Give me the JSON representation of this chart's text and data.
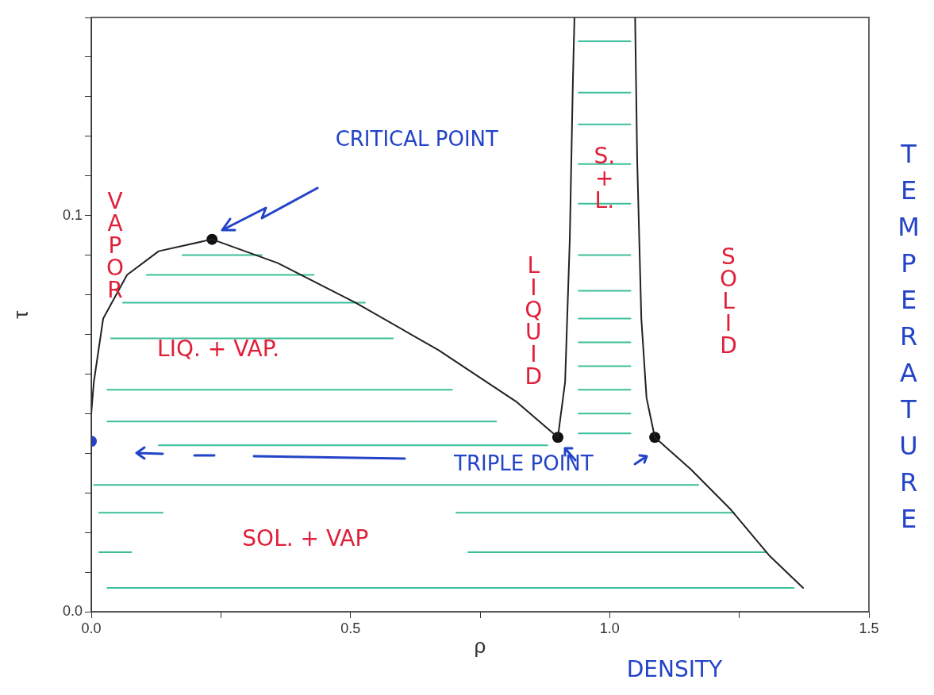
{
  "chart_data": {
    "type": "line",
    "xlabel": "ρ",
    "ylabel": "τ",
    "y2label": "TEMPERATURE",
    "xlim": [
      0,
      1.5
    ],
    "ylim": [
      0,
      0.15
    ],
    "xticks": [
      {
        "value": 0,
        "label": "0.0"
      },
      {
        "value": 0.25,
        "label": null
      },
      0.5,
      {
        "value": 0.75,
        "label": null
      },
      {
        "value": 1,
        "label": "1.0"
      },
      {
        "value": 1.25,
        "label": null
      },
      1.5
    ],
    "yticks": [
      {
        "value": 0,
        "label": "0.0"
      },
      {
        "value": 0.01,
        "label": null
      },
      {
        "value": 0.02,
        "label": null
      },
      {
        "value": 0.03,
        "label": null
      },
      {
        "value": 0.04,
        "label": null
      },
      {
        "value": 0.05,
        "label": null
      },
      {
        "value": 0.06,
        "label": null
      },
      {
        "value": 0.07,
        "label": null
      },
      {
        "value": 0.08,
        "label": null
      },
      {
        "value": 0.09,
        "label": null
      },
      0.1,
      {
        "value": 0.11,
        "label": null
      },
      {
        "value": 0.12,
        "label": null
      },
      {
        "value": 0.13,
        "label": null
      },
      {
        "value": 0.14,
        "label": null
      },
      {
        "value": 0.15,
        "label": null
      }
    ],
    "grid": false,
    "legend": false,
    "marker": "none",
    "line_style": "solid",
    "series": [
      {
        "type": "line",
        "color": "#222222",
        "x": [
          0,
          0.005,
          0.023,
          0.069,
          0.13,
          0.233,
          0.36,
          0.51,
          0.67,
          0.82,
          0.9
        ],
        "values": [
          0.05,
          0.058,
          0.074,
          0.085,
          0.091,
          0.094,
          0.088,
          0.078,
          0.066,
          0.053,
          0.044
        ]
      },
      {
        "type": "line",
        "color": "#222222",
        "x": [
          0.9,
          0.914,
          0.923,
          0.929,
          0.932
        ],
        "values": [
          0.044,
          0.058,
          0.094,
          0.134,
          0.15
        ]
      },
      {
        "type": "line",
        "color": "#222222",
        "x": [
          1.087,
          1.071,
          1.061,
          1.053,
          1.049
        ],
        "values": [
          0.044,
          0.054,
          0.074,
          0.114,
          0.15
        ]
      },
      {
        "type": "line",
        "color": "#222222",
        "x": [
          1.087,
          1.156,
          1.232,
          1.309,
          1.373
        ],
        "values": [
          0.044,
          0.036,
          0.026,
          0.014,
          0.006
        ]
      },
      {
        "type": "line",
        "color": "#3cbf9a",
        "x": [
          0.176,
          0.329
        ],
        "values": [
          0.09,
          0.09
        ]
      },
      {
        "type": "line",
        "color": "#3cbf9a",
        "x": [
          0.107,
          0.429
        ],
        "values": [
          0.085,
          0.085
        ]
      },
      {
        "type": "line",
        "color": "#3cbf9a",
        "x": [
          0.061,
          0.528
        ],
        "values": [
          0.078,
          0.078
        ]
      },
      {
        "type": "line",
        "color": "#3cbf9a",
        "x": [
          0.038,
          0.582
        ],
        "values": [
          0.069,
          0.069
        ]
      },
      {
        "type": "line",
        "color": "#3cbf9a",
        "x": [
          0.031,
          0.696
        ],
        "values": [
          0.056,
          0.056
        ]
      },
      {
        "type": "line",
        "color": "#3cbf9a",
        "x": [
          0.031,
          0.781
        ],
        "values": [
          0.048,
          0.048
        ]
      },
      {
        "type": "line",
        "color": "#3cbf9a",
        "x": [
          0.13,
          0.88
        ],
        "values": [
          0.042,
          0.042
        ]
      },
      {
        "type": "line",
        "color": "#3cbf9a",
        "x": [
          0.005,
          1.171
        ],
        "values": [
          0.032,
          0.032
        ]
      },
      {
        "type": "line",
        "color": "#3cbf9a",
        "x": [
          0.015,
          0.138
        ],
        "values": [
          0.025,
          0.025
        ]
      },
      {
        "type": "line",
        "color": "#3cbf9a",
        "x": [
          0.704,
          1.24
        ],
        "values": [
          0.025,
          0.025
        ]
      },
      {
        "type": "line",
        "color": "#3cbf9a",
        "x": [
          0.015,
          0.077
        ],
        "values": [
          0.015,
          0.015
        ]
      },
      {
        "type": "line",
        "color": "#3cbf9a",
        "x": [
          0.727,
          1.301
        ],
        "values": [
          0.015,
          0.015
        ]
      },
      {
        "type": "line",
        "color": "#3cbf9a",
        "x": [
          0.031,
          1.355
        ],
        "values": [
          0.006,
          0.006
        ]
      },
      {
        "type": "line",
        "color": "#3cbf9a",
        "x": [
          0.94,
          1.04
        ],
        "values": [
          0.144,
          0.144
        ]
      },
      {
        "type": "line",
        "color": "#3cbf9a",
        "x": [
          0.94,
          1.04
        ],
        "values": [
          0.131,
          0.131
        ]
      },
      {
        "type": "line",
        "color": "#3cbf9a",
        "x": [
          0.94,
          1.04
        ],
        "values": [
          0.123,
          0.123
        ]
      },
      {
        "type": "line",
        "color": "#3cbf9a",
        "x": [
          0.94,
          1.04
        ],
        "values": [
          0.113,
          0.113
        ]
      },
      {
        "type": "line",
        "color": "#3cbf9a",
        "x": [
          0.94,
          1.04
        ],
        "values": [
          0.103,
          0.103
        ]
      },
      {
        "type": "line",
        "color": "#3cbf9a",
        "x": [
          0.94,
          1.04
        ],
        "values": [
          0.09,
          0.09
        ]
      },
      {
        "type": "line",
        "color": "#3cbf9a",
        "x": [
          0.94,
          1.04
        ],
        "values": [
          0.081,
          0.081
        ]
      },
      {
        "type": "line",
        "color": "#3cbf9a",
        "x": [
          0.94,
          1.04
        ],
        "values": [
          0.074,
          0.074
        ]
      },
      {
        "type": "line",
        "color": "#3cbf9a",
        "x": [
          0.94,
          1.04
        ],
        "values": [
          0.068,
          0.068
        ]
      },
      {
        "type": "line",
        "color": "#3cbf9a",
        "x": [
          0.94,
          1.04
        ],
        "values": [
          0.062,
          0.062
        ]
      },
      {
        "type": "line",
        "color": "#3cbf9a",
        "x": [
          0.94,
          1.04
        ],
        "values": [
          0.056,
          0.056
        ]
      },
      {
        "type": "line",
        "color": "#3cbf9a",
        "x": [
          0.94,
          1.04
        ],
        "values": [
          0.05,
          0.05
        ]
      },
      {
        "type": "line",
        "color": "#3cbf9a",
        "x": [
          0.94,
          1.04
        ],
        "values": [
          0.045,
          0.045
        ]
      },
      {
        "type": "scatter",
        "marker": "circle",
        "color": "#111111",
        "x": [
          0.233,
          0.9,
          1.087
        ],
        "values": [
          0.094,
          0.044,
          0.044
        ]
      },
      {
        "type": "scatter",
        "marker": "circle",
        "color": "#2343c8",
        "x": [
          0
        ],
        "values": [
          0.043
        ]
      }
    ],
    "annotations": [
      "CRITICAL POINT",
      "VAPOR",
      "LIQ. + VAP.",
      "LIQUID",
      "S. + L.",
      "SOLID",
      "TRIPLE POINT",
      "SOL. + VAP",
      "DENSITY"
    ]
  }
}
